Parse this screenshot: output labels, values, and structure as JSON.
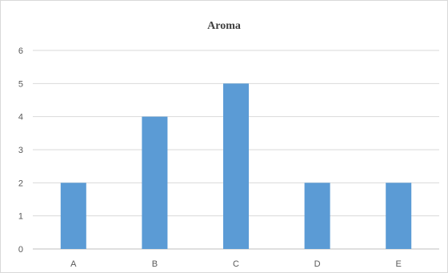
{
  "chart_data": {
    "type": "bar",
    "title": "Aroma",
    "categories": [
      "A",
      "B",
      "C",
      "D",
      "E"
    ],
    "values": [
      2,
      4,
      5,
      2,
      2
    ],
    "xlabel": "",
    "ylabel": "",
    "ylim": [
      0,
      6
    ],
    "yticks": [
      0,
      1,
      2,
      3,
      4,
      5,
      6
    ],
    "grid": true,
    "legend": "none",
    "colors": {
      "bar": "#5b9bd5",
      "grid": "#d9d9d9",
      "axis": "#bfbfbf",
      "text": "#595959"
    }
  }
}
